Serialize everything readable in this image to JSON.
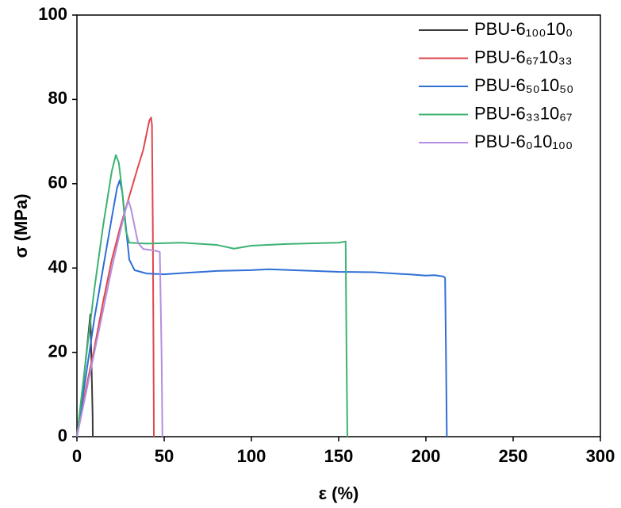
{
  "chart_data": {
    "type": "line",
    "xlabel": "ε (%)",
    "ylabel": "σ (MPa)",
    "xlim": [
      0,
      300
    ],
    "xticks": [
      0,
      50,
      100,
      150,
      200,
      250,
      300
    ],
    "ylim": [
      0,
      100
    ],
    "yticks": [
      0,
      20,
      40,
      60,
      80,
      100
    ],
    "legend": "upper right",
    "series": [
      {
        "name": "PBU-6₁₀₀10₀",
        "color": "#3a3a3a",
        "x": [
          0,
          2,
          4,
          6,
          7.7,
          8.2,
          9,
          9.1
        ],
        "values": [
          0,
          7,
          14,
          22,
          29,
          20,
          5,
          0
        ]
      },
      {
        "name": "PBU-6₆₇10₃₃",
        "color": "#e0474c",
        "x": [
          0,
          5,
          10,
          15,
          20,
          25,
          30,
          35,
          38,
          40,
          41.5,
          42.5,
          43,
          43.5,
          44,
          44.1
        ],
        "values": [
          0,
          11,
          21,
          32,
          42,
          50,
          57,
          64,
          68,
          72,
          75,
          75.7,
          74,
          50,
          10,
          0
        ]
      },
      {
        "name": "PBU-6₅₀10₅₀",
        "color": "#2f6fd6",
        "x": [
          0,
          5,
          10,
          15,
          20,
          23,
          24.5,
          26,
          28,
          30,
          33,
          40,
          50,
          60,
          80,
          100,
          110,
          130,
          150,
          170,
          190,
          200,
          205,
          210,
          211,
          211.5,
          212
        ],
        "values": [
          0,
          14,
          28,
          40,
          52,
          59,
          60.8,
          58,
          50,
          42,
          39.5,
          38.7,
          38.5,
          38.8,
          39.3,
          39.5,
          39.7,
          39.4,
          39.1,
          39,
          38.5,
          38.2,
          38.3,
          38,
          37.7,
          20,
          0
        ]
      },
      {
        "name": "PBU-6₃₃10₆₇",
        "color": "#3cb371",
        "x": [
          0,
          5,
          10,
          15,
          20,
          22.3,
          24,
          26,
          28,
          30,
          40,
          60,
          80,
          90,
          100,
          120,
          140,
          150,
          154,
          154.5,
          155
        ],
        "values": [
          0,
          18,
          35,
          50,
          63,
          66.8,
          65,
          58,
          49,
          46,
          45.8,
          46,
          45.5,
          44.6,
          45.3,
          45.7,
          45.9,
          46,
          46.3,
          20,
          0
        ]
      },
      {
        "name": "PBU-6₀10₁₀₀",
        "color": "#b48ee0",
        "x": [
          0,
          5,
          10,
          15,
          20,
          25,
          28,
          29.5,
          31,
          33,
          35,
          38,
          42,
          46,
          47.5,
          48.5,
          49
        ],
        "values": [
          0,
          10,
          20,
          30,
          40,
          49,
          54,
          56,
          54,
          50,
          46,
          44.5,
          44.3,
          44,
          43.8,
          20,
          0
        ]
      }
    ]
  }
}
